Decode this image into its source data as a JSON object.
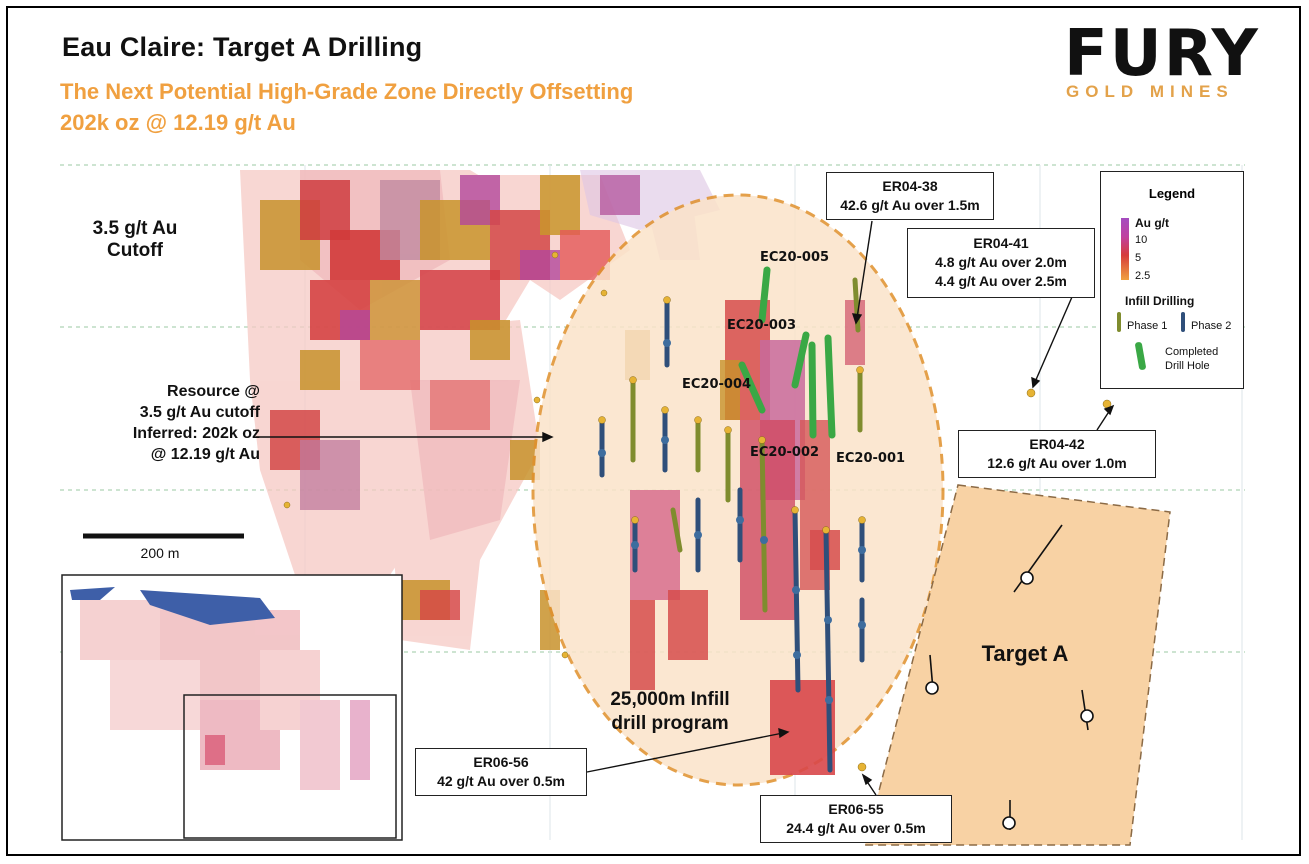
{
  "header": {
    "title": "Eau Claire: Target A Drilling",
    "subtitle_line1": "The Next Potential High-Grade Zone Directly Offsetting",
    "subtitle_line2": "202k oz @ 12.19 g/t Au"
  },
  "logo": {
    "word": "FURY",
    "sub": "GOLD MINES"
  },
  "map_labels": {
    "cutoff_line1": "3.5 g/t Au",
    "cutoff_line2": "Cutoff",
    "resource_line1": "Resource @",
    "resource_line2": "3.5 g/t Au cutoff",
    "resource_line3": "Inferred: 202k oz",
    "resource_line4": "@ 12.19 g/t Au",
    "scale_label": "200 m",
    "infill_line1": "25,000m Infill",
    "infill_line2": "drill program",
    "target_a": "Target A"
  },
  "drill_holes": {
    "ec20_005": "EC20-005",
    "ec20_003": "EC20-003",
    "ec20_004": "EC20-004",
    "ec20_002": "EC20-002",
    "ec20_001": "EC20-001"
  },
  "callouts": {
    "er04_38": {
      "name": "ER04-38",
      "line1": "42.6 g/t Au over 1.5m"
    },
    "er04_41": {
      "name": "ER04-41",
      "line1": "4.8 g/t Au over 2.0m",
      "line2": "4.4 g/t Au over 2.5m"
    },
    "er04_42": {
      "name": "ER04-42",
      "line1": "12.6 g/t Au over 1.0m"
    },
    "er06_56": {
      "name": "ER06-56",
      "line1": "42 g/t Au over 0.5m"
    },
    "er06_55": {
      "name": "ER06-55",
      "line1": "24.4 g/t Au over 0.5m"
    }
  },
  "legend": {
    "title": "Legend",
    "grade_title": "Au g/t",
    "grade_ticks": [
      "10",
      "5",
      "2.5"
    ],
    "infill_title": "Infill Drilling",
    "phase1": "Phase 1",
    "phase2": "Phase 2",
    "completed_line1": "Completed",
    "completed_line2": "Drill Hole"
  },
  "colors": {
    "accent_orange": "#f0a040",
    "grade_high": "#b040a0",
    "grade_mid": "#d83a3a",
    "grade_low": "#f0a040",
    "target_fill": "#f8d2a4",
    "completed_hole": "#3aa845",
    "phase2_hole": "#2f4f7a"
  }
}
